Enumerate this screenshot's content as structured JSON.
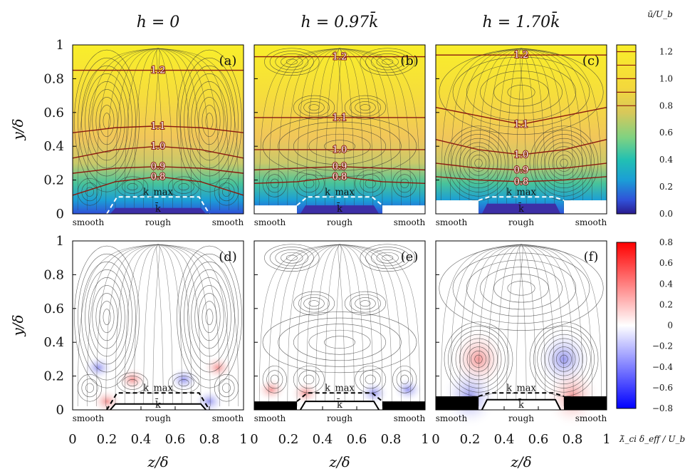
{
  "column_titles": [
    "h = 0",
    "h = 0.97k̄",
    "h = 1.70k̄"
  ],
  "top_row_letters": [
    "(a)",
    "(b)",
    "(c)"
  ],
  "bottom_row_letters": [
    "(d)",
    "(e)",
    "(f)"
  ],
  "region_labels": [
    "smooth",
    "rough",
    "smooth"
  ],
  "ylabel": "y/δ",
  "xlabel": "z/δ",
  "colorbar_top": {
    "title": "ū/U_b",
    "ticks": [
      "1.2",
      "1.0",
      "0.8",
      "0.6",
      "0.4",
      "0.2",
      "0.0"
    ],
    "colors": [
      "#2a1b8e",
      "#3050d8",
      "#1b9ed6",
      "#22c0b2",
      "#7ed282",
      "#d8c85a",
      "#f4d83c",
      "#f9ee2a"
    ]
  },
  "colorbar_bottom": {
    "title": "λ̄_ci δ_eff / U_b",
    "ticks": [
      "0.8",
      "0.6",
      "0.4",
      "0.2",
      "0",
      "−0.2",
      "−0.4",
      "−0.6",
      "−0.8"
    ],
    "colors": [
      "#ff0000",
      "#ffffff",
      "#0000ff"
    ]
  },
  "annotations": {
    "kmax": "k_max",
    "kbar": "k̄"
  },
  "chart_data": [
    {
      "type": "heatmap",
      "panel": "(a)",
      "title": "h = 0",
      "xlabel": "",
      "ylabel": "y/δ",
      "xlim": [
        0,
        1
      ],
      "ylim": [
        0,
        1
      ],
      "contour_labels": [
        "1.2",
        "1.1",
        "1.0",
        "0.9",
        "0.8"
      ],
      "contour_lines": [
        {
          "level": "1.2",
          "y": [
            0.85,
            0.85,
            0.85,
            0.85,
            0.85
          ]
        },
        {
          "level": "1.1",
          "y": [
            0.48,
            0.51,
            0.52,
            0.51,
            0.48
          ]
        },
        {
          "level": "1.0",
          "y": [
            0.33,
            0.38,
            0.4,
            0.38,
            0.33
          ]
        },
        {
          "level": "0.9",
          "y": [
            0.24,
            0.27,
            0.28,
            0.27,
            0.24
          ]
        },
        {
          "level": "0.8",
          "y": [
            0.11,
            0.19,
            0.22,
            0.19,
            0.11
          ]
        }
      ],
      "x_samples": [
        0,
        0.25,
        0.5,
        0.75,
        1
      ]
    },
    {
      "type": "heatmap",
      "panel": "(b)",
      "title": "h = 0.97k̄",
      "xlim": [
        0,
        1
      ],
      "ylim": [
        0,
        1
      ],
      "contour_labels": [
        "1.2",
        "1.1",
        "1.0",
        "0.9",
        "0.8"
      ],
      "contour_lines": [
        {
          "level": "1.2",
          "y": [
            0.93,
            0.93,
            0.93,
            0.93,
            0.93
          ]
        },
        {
          "level": "1.1",
          "y": [
            0.57,
            0.57,
            0.57,
            0.57,
            0.57
          ]
        },
        {
          "level": "1.0",
          "y": [
            0.38,
            0.38,
            0.38,
            0.38,
            0.38
          ]
        },
        {
          "level": "0.9",
          "y": [
            0.26,
            0.27,
            0.28,
            0.27,
            0.26
          ]
        },
        {
          "level": "0.8",
          "y": [
            0.18,
            0.19,
            0.22,
            0.19,
            0.18
          ]
        }
      ],
      "x_samples": [
        0,
        0.25,
        0.5,
        0.75,
        1
      ]
    },
    {
      "type": "heatmap",
      "panel": "(c)",
      "title": "h = 1.70k̄",
      "xlim": [
        0,
        1
      ],
      "ylim": [
        0,
        1
      ],
      "contour_labels": [
        "1.2",
        "1.1",
        "1.0",
        "0.9",
        "0.8"
      ],
      "contour_lines": [
        {
          "level": "1.2",
          "y": [
            0.94,
            0.94,
            0.94,
            0.94,
            0.94
          ]
        },
        {
          "level": "1.1",
          "y": [
            0.63,
            0.58,
            0.53,
            0.58,
            0.63
          ]
        },
        {
          "level": "1.0",
          "y": [
            0.44,
            0.38,
            0.35,
            0.38,
            0.44
          ]
        },
        {
          "level": "0.9",
          "y": [
            0.3,
            0.27,
            0.26,
            0.27,
            0.3
          ]
        },
        {
          "level": "0.8",
          "y": [
            0.22,
            0.2,
            0.19,
            0.2,
            0.22
          ]
        }
      ],
      "x_samples": [
        0,
        0.25,
        0.5,
        0.75,
        1
      ]
    },
    {
      "type": "heatmap",
      "panel": "(d)",
      "xlabel": "z/δ",
      "ylabel": "y/δ",
      "xlim": [
        0,
        1
      ],
      "ylim": [
        0,
        1
      ],
      "xticks": [
        "0",
        "0.2",
        "0.4",
        "0.6",
        "0.8",
        "1"
      ]
    },
    {
      "type": "heatmap",
      "panel": "(e)",
      "xlabel": "z/δ",
      "xlim": [
        0,
        1
      ],
      "ylim": [
        0,
        1
      ],
      "xticks": [
        "0",
        "0.2",
        "0.4",
        "0.6",
        "0.8",
        "1"
      ]
    },
    {
      "type": "heatmap",
      "panel": "(f)",
      "xlabel": "z/δ",
      "xlim": [
        0,
        1
      ],
      "ylim": [
        0,
        1
      ],
      "xticks": [
        "0",
        "0.2",
        "0.4",
        "0.6",
        "0.8",
        "1"
      ]
    }
  ],
  "yticks": [
    "0",
    "0.2",
    "0.4",
    "0.6",
    "0.8",
    "1"
  ]
}
